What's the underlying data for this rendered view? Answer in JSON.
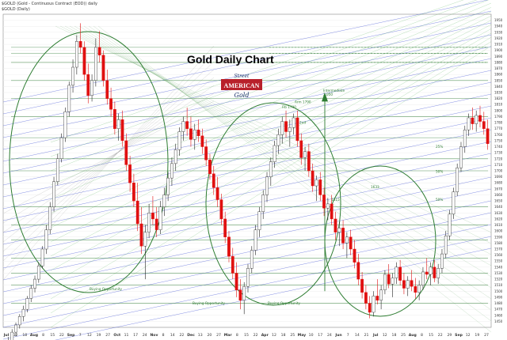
{
  "header": {
    "symbol_line": "$GOLD (Gold - Continuous Contract (EOD)) daily",
    "sub_line": "$GOLD (Daily)"
  },
  "logo": {
    "top": "Street",
    "main": "AMERICAN",
    "bottom": "Gold"
  },
  "chart_data": {
    "type": "candlestick",
    "title": "Gold Daily Chart",
    "xlabel": "",
    "ylabel": "",
    "ylim": [
      1440,
      1960
    ],
    "yticks": [
      1450,
      1460,
      1470,
      1480,
      1490,
      1500,
      1510,
      1520,
      1530,
      1540,
      1550,
      1560,
      1570,
      1580,
      1590,
      1600,
      1610,
      1620,
      1630,
      1640,
      1650,
      1660,
      1670,
      1680,
      1690,
      1700,
      1710,
      1720,
      1730,
      1740,
      1750,
      1760,
      1770,
      1780,
      1790,
      1800,
      1810,
      1820,
      1830,
      1840,
      1850,
      1860,
      1870,
      1880,
      1890,
      1900,
      1910,
      1920,
      1930,
      1940,
      1950
    ],
    "xticks": [
      "Jul",
      "12",
      "18",
      "Aug",
      "8",
      "15",
      "22",
      "Sep",
      "7",
      "12",
      "19",
      "27",
      "Oct",
      "11",
      "17",
      "24",
      "Nov",
      "8",
      "14",
      "22",
      "Dec",
      "13",
      "20",
      "27",
      "Mar",
      "8",
      "15",
      "22",
      "Apr",
      "12",
      "18",
      "25",
      "May",
      "10",
      "17",
      "24",
      "Jun",
      "7",
      "14",
      "21",
      "Jul",
      "12",
      "18",
      "25",
      "Aug",
      "8",
      "15",
      "22",
      "29",
      "Sep",
      "12",
      "19",
      "27"
    ],
    "annotations": [
      {
        "text": "Buying Opportunity",
        "x": "Sep 27",
        "y": 1502
      },
      {
        "text": "Buying Opportunity",
        "x": "Dec 27",
        "y": 1478
      },
      {
        "text": "Buying Opportunity",
        "x": "Jun 7",
        "y": 1478
      },
      {
        "text": "Intermediate",
        "x": "Jun 14",
        "y": 1831
      },
      {
        "text": "2,050",
        "x": "Jun 14",
        "y": 1825
      },
      {
        "text": "Arm 1790",
        "x": "May 10",
        "y": 1812
      },
      {
        "text": "Fib 1790",
        "x": "Apr 12",
        "y": 1804
      },
      {
        "text": "2nd",
        "x": "May 24",
        "y": 1778
      },
      {
        "text": "1633",
        "x": "Jul 25",
        "y": 1671
      },
      {
        "text": "1315",
        "x": "Jun 21",
        "y": 1650
      },
      {
        "text": "25%",
        "x": "Sep 27",
        "y": 1738
      },
      {
        "text": "50%",
        "x": "Sep 27",
        "y": 1697
      },
      {
        "text": "50%",
        "x": "Sep 27",
        "y": 1650
      }
    ],
    "support_resistance": [
      1480,
      1510,
      1530,
      1555,
      1585,
      1610,
      1640,
      1700,
      1720,
      1755,
      1790,
      1820,
      1850,
      1880,
      1895,
      1905
    ],
    "series": [
      {
        "open": 1410,
        "high": 1424,
        "low": 1398,
        "close": 1418
      },
      {
        "open": 1418,
        "high": 1437,
        "low": 1412,
        "close": 1432
      },
      {
        "open": 1432,
        "high": 1448,
        "low": 1425,
        "close": 1444
      },
      {
        "open": 1444,
        "high": 1462,
        "low": 1438,
        "close": 1458
      },
      {
        "open": 1458,
        "high": 1476,
        "low": 1450,
        "close": 1470
      },
      {
        "open": 1470,
        "high": 1492,
        "low": 1465,
        "close": 1488
      },
      {
        "open": 1488,
        "high": 1510,
        "low": 1482,
        "close": 1505
      },
      {
        "open": 1505,
        "high": 1526,
        "low": 1498,
        "close": 1520
      },
      {
        "open": 1520,
        "high": 1548,
        "low": 1514,
        "close": 1542
      },
      {
        "open": 1542,
        "high": 1575,
        "low": 1538,
        "close": 1570
      },
      {
        "open": 1570,
        "high": 1610,
        "low": 1562,
        "close": 1602
      },
      {
        "open": 1602,
        "high": 1648,
        "low": 1595,
        "close": 1640
      },
      {
        "open": 1640,
        "high": 1690,
        "low": 1632,
        "close": 1682
      },
      {
        "open": 1682,
        "high": 1728,
        "low": 1676,
        "close": 1720
      },
      {
        "open": 1720,
        "high": 1762,
        "low": 1714,
        "close": 1755
      },
      {
        "open": 1755,
        "high": 1805,
        "low": 1748,
        "close": 1798
      },
      {
        "open": 1798,
        "high": 1848,
        "low": 1790,
        "close": 1842
      },
      {
        "open": 1842,
        "high": 1885,
        "low": 1830,
        "close": 1872
      },
      {
        "open": 1872,
        "high": 1925,
        "low": 1860,
        "close": 1915
      },
      {
        "open": 1915,
        "high": 1945,
        "low": 1895,
        "close": 1905
      },
      {
        "open": 1905,
        "high": 1915,
        "low": 1850,
        "close": 1860
      },
      {
        "open": 1860,
        "high": 1878,
        "low": 1812,
        "close": 1825
      },
      {
        "open": 1825,
        "high": 1860,
        "low": 1815,
        "close": 1850
      },
      {
        "open": 1850,
        "high": 1920,
        "low": 1840,
        "close": 1905
      },
      {
        "open": 1905,
        "high": 1932,
        "low": 1880,
        "close": 1892
      },
      {
        "open": 1892,
        "high": 1900,
        "low": 1840,
        "close": 1850
      },
      {
        "open": 1850,
        "high": 1868,
        "low": 1810,
        "close": 1820
      },
      {
        "open": 1820,
        "high": 1838,
        "low": 1790,
        "close": 1802
      },
      {
        "open": 1802,
        "high": 1815,
        "low": 1760,
        "close": 1770
      },
      {
        "open": 1770,
        "high": 1795,
        "low": 1750,
        "close": 1785
      },
      {
        "open": 1785,
        "high": 1800,
        "low": 1740,
        "close": 1750
      },
      {
        "open": 1750,
        "high": 1762,
        "low": 1700,
        "close": 1710
      },
      {
        "open": 1710,
        "high": 1725,
        "low": 1665,
        "close": 1680
      },
      {
        "open": 1680,
        "high": 1695,
        "low": 1640,
        "close": 1650
      },
      {
        "open": 1650,
        "high": 1680,
        "low": 1600,
        "close": 1612
      },
      {
        "open": 1612,
        "high": 1640,
        "low": 1562,
        "close": 1575
      },
      {
        "open": 1575,
        "high": 1610,
        "low": 1520,
        "close": 1598
      },
      {
        "open": 1598,
        "high": 1645,
        "low": 1588,
        "close": 1630
      },
      {
        "open": 1630,
        "high": 1658,
        "low": 1610,
        "close": 1620
      },
      {
        "open": 1620,
        "high": 1640,
        "low": 1590,
        "close": 1602
      },
      {
        "open": 1602,
        "high": 1650,
        "low": 1595,
        "close": 1640
      },
      {
        "open": 1640,
        "high": 1672,
        "low": 1625,
        "close": 1660
      },
      {
        "open": 1660,
        "high": 1698,
        "low": 1650,
        "close": 1688
      },
      {
        "open": 1688,
        "high": 1722,
        "low": 1675,
        "close": 1712
      },
      {
        "open": 1712,
        "high": 1745,
        "low": 1700,
        "close": 1735
      },
      {
        "open": 1735,
        "high": 1772,
        "low": 1725,
        "close": 1765
      },
      {
        "open": 1765,
        "high": 1790,
        "low": 1750,
        "close": 1782
      },
      {
        "open": 1782,
        "high": 1805,
        "low": 1758,
        "close": 1770
      },
      {
        "open": 1770,
        "high": 1790,
        "low": 1740,
        "close": 1752
      },
      {
        "open": 1752,
        "high": 1778,
        "low": 1735,
        "close": 1768
      },
      {
        "open": 1768,
        "high": 1785,
        "low": 1748,
        "close": 1758
      },
      {
        "open": 1758,
        "high": 1770,
        "low": 1728,
        "close": 1740
      },
      {
        "open": 1740,
        "high": 1752,
        "low": 1708,
        "close": 1718
      },
      {
        "open": 1718,
        "high": 1728,
        "low": 1685,
        "close": 1695
      },
      {
        "open": 1695,
        "high": 1708,
        "low": 1660,
        "close": 1672
      },
      {
        "open": 1672,
        "high": 1690,
        "low": 1640,
        "close": 1652
      },
      {
        "open": 1652,
        "high": 1662,
        "low": 1610,
        "close": 1620
      },
      {
        "open": 1620,
        "high": 1632,
        "low": 1580,
        "close": 1590
      },
      {
        "open": 1590,
        "high": 1600,
        "low": 1548,
        "close": 1558
      },
      {
        "open": 1558,
        "high": 1572,
        "low": 1520,
        "close": 1530
      },
      {
        "open": 1530,
        "high": 1548,
        "low": 1490,
        "close": 1502
      },
      {
        "open": 1502,
        "high": 1520,
        "low": 1470,
        "close": 1485
      },
      {
        "open": 1485,
        "high": 1515,
        "low": 1462,
        "close": 1508
      },
      {
        "open": 1508,
        "high": 1545,
        "low": 1498,
        "close": 1538
      },
      {
        "open": 1538,
        "high": 1575,
        "low": 1530,
        "close": 1568
      },
      {
        "open": 1568,
        "high": 1610,
        "low": 1560,
        "close": 1602
      },
      {
        "open": 1602,
        "high": 1640,
        "low": 1590,
        "close": 1632
      },
      {
        "open": 1632,
        "high": 1668,
        "low": 1620,
        "close": 1660
      },
      {
        "open": 1660,
        "high": 1698,
        "low": 1648,
        "close": 1690
      },
      {
        "open": 1690,
        "high": 1722,
        "low": 1675,
        "close": 1715
      },
      {
        "open": 1715,
        "high": 1750,
        "low": 1705,
        "close": 1742
      },
      {
        "open": 1742,
        "high": 1770,
        "low": 1728,
        "close": 1760
      },
      {
        "open": 1760,
        "high": 1790,
        "low": 1745,
        "close": 1782
      },
      {
        "open": 1782,
        "high": 1800,
        "low": 1755,
        "close": 1765
      },
      {
        "open": 1765,
        "high": 1785,
        "low": 1740,
        "close": 1772
      },
      {
        "open": 1772,
        "high": 1795,
        "low": 1760,
        "close": 1788
      },
      {
        "open": 1788,
        "high": 1800,
        "low": 1740,
        "close": 1750
      },
      {
        "open": 1750,
        "high": 1762,
        "low": 1710,
        "close": 1722
      },
      {
        "open": 1722,
        "high": 1740,
        "low": 1700,
        "close": 1732
      },
      {
        "open": 1732,
        "high": 1745,
        "low": 1690,
        "close": 1700
      },
      {
        "open": 1700,
        "high": 1712,
        "low": 1665,
        "close": 1675
      },
      {
        "open": 1675,
        "high": 1692,
        "low": 1650,
        "close": 1685
      },
      {
        "open": 1685,
        "high": 1698,
        "low": 1650,
        "close": 1660
      },
      {
        "open": 1660,
        "high": 1672,
        "low": 1625,
        "close": 1638
      },
      {
        "open": 1638,
        "high": 1655,
        "low": 1618,
        "close": 1645
      },
      {
        "open": 1645,
        "high": 1660,
        "low": 1610,
        "close": 1620
      },
      {
        "open": 1620,
        "high": 1632,
        "low": 1585,
        "close": 1598
      },
      {
        "open": 1598,
        "high": 1615,
        "low": 1575,
        "close": 1605
      },
      {
        "open": 1605,
        "high": 1618,
        "low": 1570,
        "close": 1580
      },
      {
        "open": 1580,
        "high": 1598,
        "low": 1555,
        "close": 1590
      },
      {
        "open": 1590,
        "high": 1602,
        "low": 1560,
        "close": 1570
      },
      {
        "open": 1570,
        "high": 1585,
        "low": 1538,
        "close": 1548
      },
      {
        "open": 1548,
        "high": 1562,
        "low": 1510,
        "close": 1520
      },
      {
        "open": 1520,
        "high": 1532,
        "low": 1488,
        "close": 1498
      },
      {
        "open": 1498,
        "high": 1510,
        "low": 1470,
        "close": 1480
      },
      {
        "open": 1480,
        "high": 1492,
        "low": 1455,
        "close": 1465
      },
      {
        "open": 1465,
        "high": 1500,
        "low": 1458,
        "close": 1492
      },
      {
        "open": 1492,
        "high": 1520,
        "low": 1478,
        "close": 1485
      },
      {
        "open": 1485,
        "high": 1510,
        "low": 1470,
        "close": 1502
      },
      {
        "open": 1502,
        "high": 1535,
        "low": 1495,
        "close": 1528
      },
      {
        "open": 1528,
        "high": 1545,
        "low": 1505,
        "close": 1512
      },
      {
        "open": 1512,
        "high": 1530,
        "low": 1490,
        "close": 1522
      },
      {
        "open": 1522,
        "high": 1548,
        "low": 1512,
        "close": 1540
      },
      {
        "open": 1540,
        "high": 1552,
        "low": 1510,
        "close": 1518
      },
      {
        "open": 1518,
        "high": 1530,
        "low": 1495,
        "close": 1505
      },
      {
        "open": 1505,
        "high": 1525,
        "low": 1492,
        "close": 1518
      },
      {
        "open": 1518,
        "high": 1535,
        "low": 1500,
        "close": 1508
      },
      {
        "open": 1508,
        "high": 1522,
        "low": 1488,
        "close": 1498
      },
      {
        "open": 1498,
        "high": 1518,
        "low": 1485,
        "close": 1510
      },
      {
        "open": 1510,
        "high": 1540,
        "low": 1502,
        "close": 1532
      },
      {
        "open": 1532,
        "high": 1555,
        "low": 1520,
        "close": 1528
      },
      {
        "open": 1528,
        "high": 1548,
        "low": 1510,
        "close": 1540
      },
      {
        "open": 1540,
        "high": 1552,
        "low": 1515,
        "close": 1522
      },
      {
        "open": 1522,
        "high": 1545,
        "low": 1512,
        "close": 1538
      },
      {
        "open": 1538,
        "high": 1570,
        "low": 1530,
        "close": 1562
      },
      {
        "open": 1562,
        "high": 1600,
        "low": 1555,
        "close": 1592
      },
      {
        "open": 1592,
        "high": 1635,
        "low": 1585,
        "close": 1628
      },
      {
        "open": 1628,
        "high": 1672,
        "low": 1620,
        "close": 1665
      },
      {
        "open": 1665,
        "high": 1712,
        "low": 1658,
        "close": 1705
      },
      {
        "open": 1705,
        "high": 1748,
        "low": 1698,
        "close": 1740
      },
      {
        "open": 1740,
        "high": 1775,
        "low": 1730,
        "close": 1768
      },
      {
        "open": 1768,
        "high": 1795,
        "low": 1758,
        "close": 1788
      },
      {
        "open": 1788,
        "high": 1805,
        "low": 1768,
        "close": 1778
      },
      {
        "open": 1778,
        "high": 1800,
        "low": 1765,
        "close": 1792
      },
      {
        "open": 1792,
        "high": 1808,
        "low": 1772,
        "close": 1782
      },
      {
        "open": 1782,
        "high": 1798,
        "low": 1760,
        "close": 1770
      },
      {
        "open": 1770,
        "high": 1785,
        "low": 1735,
        "close": 1745
      }
    ]
  }
}
